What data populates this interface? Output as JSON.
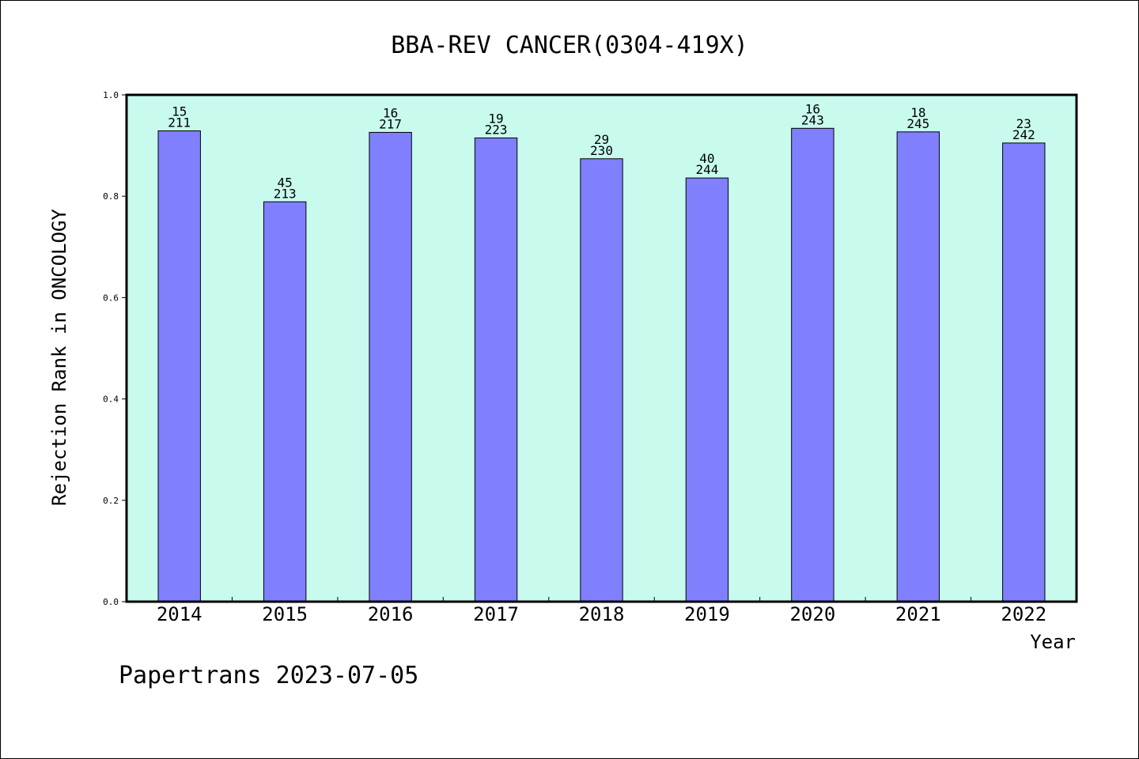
{
  "chart_data": {
    "type": "bar",
    "title": "BBA-REV CANCER(0304-419X)",
    "xlabel": "Year",
    "ylabel": "Rejection Rank in ONCOLOGY",
    "categories": [
      "2014",
      "2015",
      "2016",
      "2017",
      "2018",
      "2019",
      "2020",
      "2021",
      "2022"
    ],
    "values": [
      0.929,
      0.789,
      0.926,
      0.915,
      0.874,
      0.836,
      0.934,
      0.927,
      0.905
    ],
    "label_top": [
      "15",
      "45",
      "16",
      "19",
      "29",
      "40",
      "16",
      "18",
      "23"
    ],
    "label_bottom": [
      "211",
      "213",
      "217",
      "223",
      "230",
      "244",
      "243",
      "245",
      "242"
    ],
    "ylim": [
      0.0,
      1.0
    ],
    "yticks": [
      "0.0",
      "0.2",
      "0.4",
      "0.6",
      "0.8",
      "1.0"
    ],
    "grid": false,
    "colors": {
      "plot_background": "#c8faee",
      "bar_fill": "#8080ff",
      "bar_edge": "#000000"
    }
  },
  "footer": "Papertrans 2023-07-05"
}
